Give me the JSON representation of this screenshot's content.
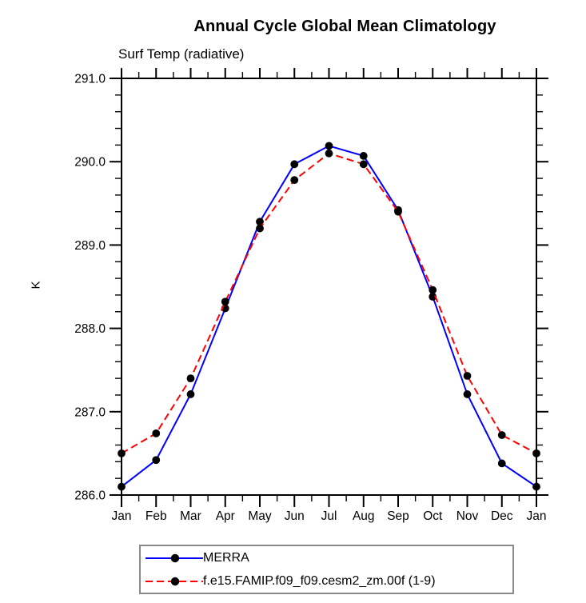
{
  "figure": {
    "title": "Annual Cycle Global Mean Climatology",
    "subtitle": "Surf Temp (radiative)",
    "ylabel": "K"
  },
  "chart_data": {
    "type": "line",
    "categories": [
      "Jan",
      "Feb",
      "Mar",
      "Apr",
      "May",
      "Jun",
      "Jul",
      "Aug",
      "Sep",
      "Oct",
      "Nov",
      "Dec",
      "Jan"
    ],
    "xlabel": "",
    "ylabel": "K",
    "ylim": [
      286.0,
      291.0
    ],
    "ytick_major_interval": 1.0,
    "ytick_minor_interval": 0.2,
    "ytick_labels": [
      "286.0",
      "287.0",
      "288.0",
      "289.0",
      "290.0",
      "291.0"
    ],
    "grid": false,
    "legend_position": "bottom",
    "frame_color": "#000000",
    "marker_color": "#000000",
    "series": [
      {
        "name": "MERRA",
        "color": "#0000ff",
        "style": "solid",
        "marker": "circle",
        "values": [
          286.1,
          286.42,
          287.21,
          288.24,
          289.28,
          289.97,
          290.19,
          290.07,
          289.42,
          288.38,
          287.21,
          286.38,
          286.1
        ]
      },
      {
        "name": "f.e15.FAMIP.f09_f09.cesm2_zm.00f (1-9)",
        "color": "#ff0000",
        "style": "dashed",
        "marker": "circle",
        "values": [
          286.5,
          286.74,
          287.4,
          288.32,
          289.2,
          289.78,
          290.1,
          289.97,
          289.4,
          288.46,
          287.43,
          286.72,
          286.5
        ]
      }
    ]
  }
}
